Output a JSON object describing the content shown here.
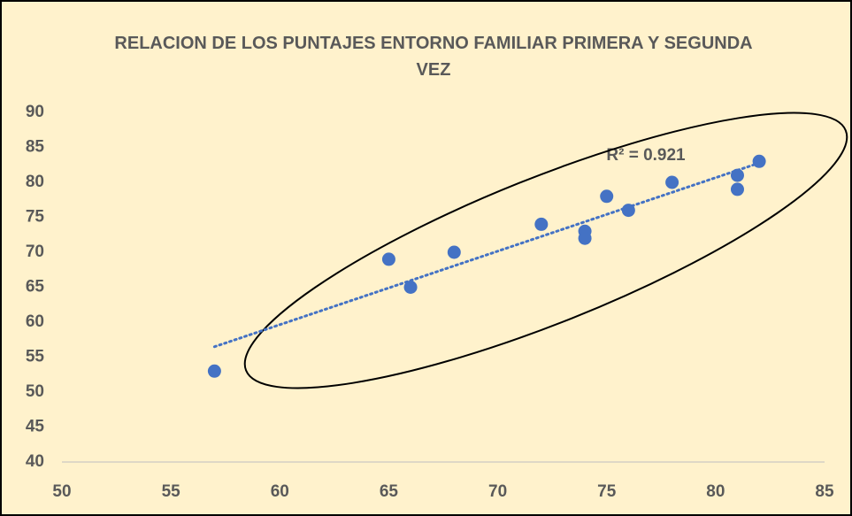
{
  "chart_data": {
    "type": "scatter",
    "title": "RELACION DE LOS PUNTAJES ENTORNO FAMILIAR  PRIMERA Y SEGUNDA VEZ",
    "annotation": "R² = 0.921",
    "x": [
      57,
      65,
      66,
      68,
      72,
      74,
      74,
      75,
      76,
      78,
      81,
      81,
      82
    ],
    "values": [
      53,
      69,
      65,
      70,
      74,
      73,
      72,
      78,
      76,
      80,
      81,
      79,
      83
    ],
    "color": "#4472c4",
    "trendline": true,
    "xlim": [
      50,
      85
    ],
    "xticks": [
      50,
      55,
      60,
      65,
      70,
      75,
      80,
      85
    ],
    "ylim": [
      40,
      90
    ],
    "yticks": [
      40,
      45,
      50,
      55,
      60,
      65,
      70,
      75,
      80,
      85,
      90
    ]
  }
}
